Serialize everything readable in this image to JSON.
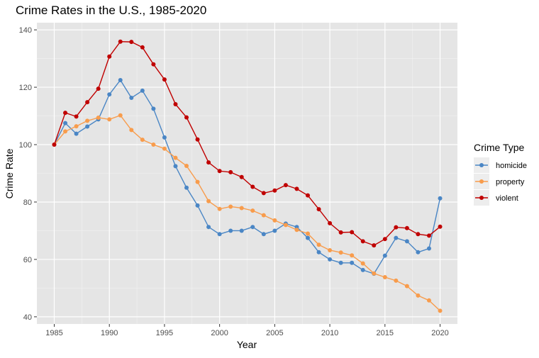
{
  "chart_data": {
    "type": "line",
    "title": "Crime Rates in the U.S., 1985-2020",
    "xlabel": "Year",
    "ylabel": "Crime Rate",
    "xlim": [
      1985,
      2020
    ],
    "ylim": [
      40,
      140
    ],
    "x_ticks": [
      1985,
      1990,
      1995,
      2000,
      2005,
      2010,
      2015,
      2020
    ],
    "y_ticks": [
      40,
      60,
      80,
      100,
      120,
      140
    ],
    "grid": true,
    "legend_title": "Crime Type",
    "legend_position": "right",
    "x": [
      1985,
      1986,
      1987,
      1988,
      1989,
      1990,
      1991,
      1992,
      1993,
      1994,
      1995,
      1996,
      1997,
      1998,
      1999,
      2000,
      2001,
      2002,
      2003,
      2004,
      2005,
      2006,
      2007,
      2008,
      2009,
      2010,
      2011,
      2012,
      2013,
      2014,
      2015,
      2016,
      2017,
      2018,
      2019,
      2020
    ],
    "series": [
      {
        "name": "homicide",
        "color": "#4A86C5",
        "values": [
          100,
          107.5,
          103.8,
          106.3,
          108.8,
          117.5,
          122.5,
          116.3,
          118.8,
          112.5,
          102.5,
          92.5,
          85,
          78.8,
          71.3,
          68.8,
          70,
          70,
          71.3,
          68.8,
          70,
          72.5,
          71.3,
          67.5,
          62.5,
          60,
          58.8,
          58.8,
          56.3,
          55,
          61.3,
          67.5,
          66.3,
          62.5,
          63.8,
          81.3
        ]
      },
      {
        "name": "property",
        "color": "#F89C4C",
        "values": [
          100,
          104.6,
          106.4,
          108.3,
          109.4,
          108.8,
          110.2,
          105.1,
          101.7,
          100,
          98.6,
          95.4,
          92.6,
          87,
          80.3,
          77.6,
          78.4,
          77.9,
          77,
          75.4,
          73.6,
          72,
          70.3,
          69,
          65.1,
          63.2,
          62.4,
          61.4,
          58.6,
          55.1,
          53.8,
          52.6,
          50.7,
          47.4,
          45.7,
          42.1
        ]
      },
      {
        "name": "violent",
        "color": "#C00000",
        "values": [
          100,
          111.1,
          109.8,
          114.8,
          119.5,
          130.7,
          135.9,
          135.8,
          133.9,
          128,
          122.7,
          114.1,
          109.5,
          101.8,
          93.8,
          90.8,
          90.4,
          88.7,
          85.3,
          83.1,
          84,
          85.9,
          84.6,
          82.3,
          77.5,
          72.6,
          69.4,
          69.5,
          66.3,
          64.9,
          67.1,
          71.2,
          70.9,
          68.8,
          68.3,
          71.4
        ]
      }
    ]
  }
}
